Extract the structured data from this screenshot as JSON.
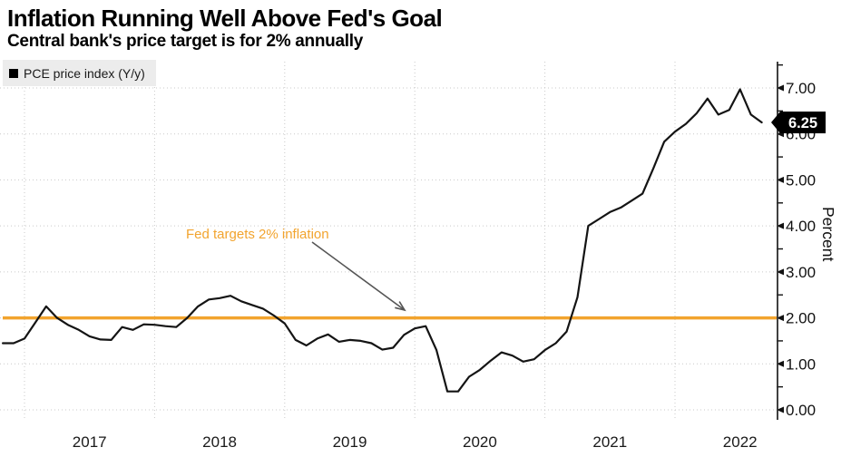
{
  "header": {
    "title": "Inflation Running Well Above Fed's Goal",
    "subtitle": "Central bank's price target is for 2% annually"
  },
  "legend": {
    "marker": "black-square",
    "label": "PCE price index (Y/y)"
  },
  "annotation": {
    "text": "Fed targets 2% inflation"
  },
  "badge": {
    "value": "6.25"
  },
  "colors": {
    "accent_orange": "#F2A42E",
    "series_line": "#141414",
    "grid": "#c9c9c9",
    "axis": "#2b2b2b",
    "arrow": "#555555",
    "badge_bg": "#000000",
    "badge_fg": "#ffffff",
    "legend_bg": "#ececec"
  },
  "chart_data": {
    "type": "line",
    "title": "Inflation Running Well Above Fed's Goal",
    "subtitle": "Central bank's price target is for 2% annually",
    "ylabel": "Percent",
    "ylim": [
      0,
      7.5
    ],
    "grid": "dotted",
    "legend_position": "top-left",
    "y_tick_labels": [
      "0.00",
      "1.00",
      "2.00",
      "3.00",
      "4.00",
      "5.00",
      "6.00",
      "7.00"
    ],
    "x_tick_labels": [
      "2017",
      "2018",
      "2019",
      "2020",
      "2021",
      "2022"
    ],
    "x_start": "2016-11",
    "x_end": "2022-09",
    "frequency": "monthly",
    "reference_line": {
      "value": 2.0,
      "label": "Fed targets 2% inflation"
    },
    "last_value_label": "6.25",
    "series": [
      {
        "name": "PCE price index (Y/y)",
        "values": [
          1.45,
          1.45,
          1.55,
          1.9,
          2.25,
          2.0,
          1.85,
          1.74,
          1.6,
          1.53,
          1.52,
          1.8,
          1.74,
          1.86,
          1.85,
          1.82,
          1.8,
          2.0,
          2.25,
          2.4,
          2.43,
          2.48,
          2.36,
          2.28,
          2.2,
          2.05,
          1.88,
          1.52,
          1.4,
          1.55,
          1.64,
          1.48,
          1.52,
          1.5,
          1.45,
          1.31,
          1.35,
          1.63,
          1.77,
          1.82,
          1.3,
          0.4,
          0.4,
          0.72,
          0.87,
          1.07,
          1.25,
          1.18,
          1.05,
          1.1,
          1.3,
          1.45,
          1.7,
          2.45,
          4.0,
          4.15,
          4.3,
          4.4,
          4.55,
          4.7,
          5.25,
          5.83,
          6.05,
          6.22,
          6.45,
          6.77,
          6.42,
          6.52,
          6.97,
          6.42,
          6.25
        ]
      }
    ]
  }
}
